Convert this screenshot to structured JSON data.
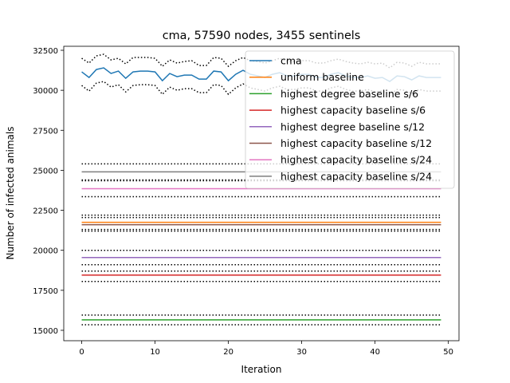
{
  "chart_data": {
    "type": "line",
    "title": "cma, 57590 nodes, 3455 sentinels",
    "xlabel": "Iteration",
    "ylabel": "Number of infected animals",
    "xlim": [
      -2.45,
      51.45
    ],
    "ylim": [
      14350,
      32750
    ],
    "x_ticks": [
      0,
      10,
      20,
      30,
      40,
      50
    ],
    "x_tick_labels": [
      "0",
      "10",
      "20",
      "30",
      "40",
      "50"
    ],
    "y_ticks": [
      15000,
      17500,
      20000,
      22500,
      25000,
      27500,
      30000,
      32500
    ],
    "y_tick_labels": [
      "15000",
      "17500",
      "20000",
      "22500",
      "25000",
      "27500",
      "30000",
      "32500"
    ],
    "grid": false,
    "legend_position": "upper right",
    "series": [
      {
        "name": "cma",
        "color": "#1f77b4",
        "x": [
          0,
          1,
          2,
          3,
          4,
          5,
          6,
          7,
          8,
          9,
          10,
          11,
          12,
          13,
          14,
          15,
          16,
          17,
          18,
          19,
          20,
          21,
          22,
          23,
          24,
          25,
          26,
          27,
          28,
          29,
          30,
          31,
          32,
          33,
          34,
          35,
          36,
          37,
          38,
          39,
          40,
          41,
          42,
          43,
          44,
          45,
          46,
          47,
          48,
          49
        ],
        "values": [
          31150,
          30800,
          31300,
          31400,
          31050,
          31200,
          30750,
          31150,
          31200,
          31200,
          31150,
          30600,
          31050,
          30850,
          30950,
          30950,
          30700,
          30700,
          31200,
          31150,
          30600,
          31000,
          31250,
          31000,
          30900,
          30800,
          31000,
          31100,
          30900,
          30900,
          31000,
          31000,
          30800,
          30800,
          31000,
          31100,
          30900,
          30800,
          30800,
          30900,
          30750,
          30800,
          30550,
          30900,
          30850,
          30650,
          30900,
          30800,
          30800,
          30800
        ],
        "upper": [
          32000,
          31700,
          32150,
          32250,
          31900,
          32000,
          31650,
          32050,
          32050,
          32050,
          32000,
          31500,
          31900,
          31700,
          31800,
          31850,
          31550,
          31550,
          32050,
          32000,
          31500,
          31850,
          32050,
          31850,
          31800,
          31700,
          31850,
          32000,
          31800,
          31800,
          31850,
          31850,
          31700,
          31700,
          31850,
          31950,
          31800,
          31700,
          31650,
          31750,
          31650,
          31700,
          31400,
          31750,
          31700,
          31500,
          31750,
          31650,
          31650,
          31650
        ],
        "lower": [
          30300,
          29950,
          30450,
          30550,
          30200,
          30350,
          29900,
          30300,
          30350,
          30350,
          30300,
          29750,
          30200,
          30000,
          30100,
          30100,
          29850,
          29850,
          30350,
          30300,
          29750,
          30150,
          30400,
          30150,
          30050,
          29950,
          30150,
          30250,
          30050,
          30050,
          30150,
          30150,
          29950,
          29950,
          30150,
          30250,
          30050,
          29950,
          29950,
          30050,
          29900,
          29950,
          29700,
          30050,
          30000,
          29800,
          30050,
          29950,
          29950,
          29950
        ]
      },
      {
        "name": "uniform baseline",
        "color": "#ff7f0e",
        "value": 21750,
        "upper": 22200,
        "lower": 21300
      },
      {
        "name": "highest degree baseline s/6",
        "color": "#2ca02c",
        "value": 15650,
        "upper": 15950,
        "lower": 15350
      },
      {
        "name": "highest capacity baseline s/6",
        "color": "#d62728",
        "value": 18450,
        "upper": 18700,
        "lower": 18050
      },
      {
        "name": "highest degree baseline s/12",
        "color": "#9467bd",
        "value": 19550,
        "upper": 20000,
        "lower": 19100
      },
      {
        "name": "highest capacity baseline s/12",
        "color": "#8c564b",
        "value": 21600,
        "upper": 22050,
        "lower": 21200
      },
      {
        "name": "highest capacity baseline s/24",
        "color": "#e377c2",
        "value": 23850,
        "upper": 24350,
        "lower": 23350
      },
      {
        "name": "highest capacity baseline s/24",
        "color": "#7f7f7f",
        "value": 24900,
        "upper": 25400,
        "lower": 24400
      }
    ]
  }
}
